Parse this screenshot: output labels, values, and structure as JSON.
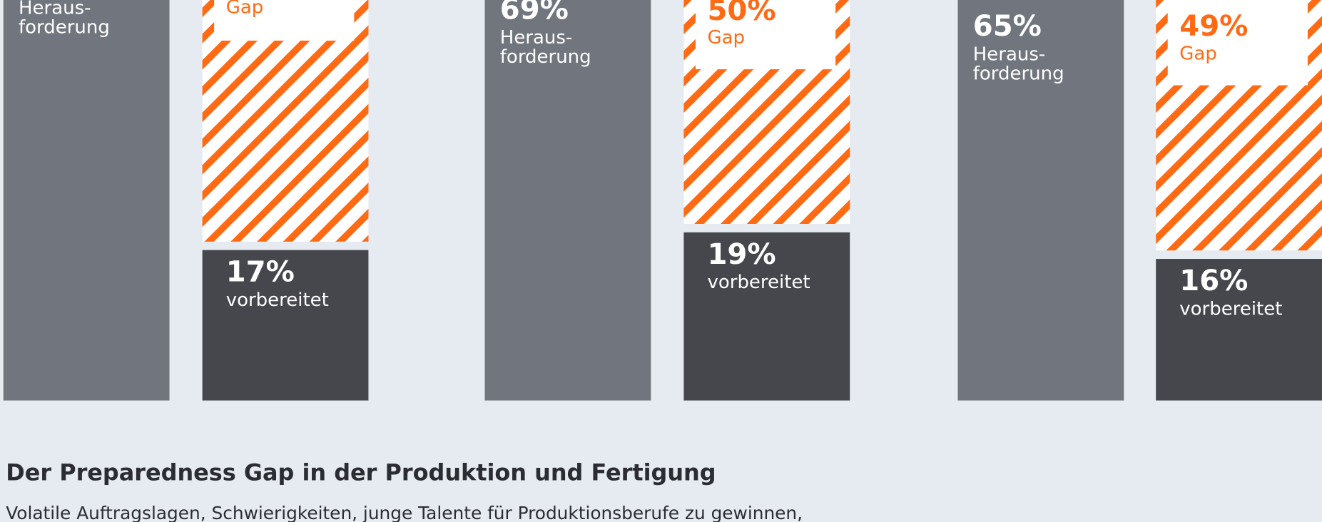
{
  "chart_data": {
    "type": "preparedness-bars",
    "title": "Der Preparedness Gap in der Produktion und Fertigung",
    "subtitle": "Volatile Auftragslagen, Schwierigkeiten, junge Talente für Produktionsberufe zu gewinnen,",
    "challenge_label": [
      "Heraus-",
      "forderung"
    ],
    "gap_label": "Gap",
    "prepared_label": "vorbereitet",
    "challenge": [
      null,
      69,
      65
    ],
    "challenge_value_labels": [
      null,
      "69%",
      "65%"
    ],
    "gap": [
      null,
      50,
      49
    ],
    "gap_value_labels": [
      null,
      "50%",
      "49%"
    ],
    "prepared": [
      17,
      19,
      16
    ],
    "prepared_value_labels": [
      "17%",
      "19%",
      "16%"
    ],
    "colors": {
      "challenge": "#71767e",
      "gap": "#ff6a13",
      "prepared": "#45474c"
    }
  }
}
